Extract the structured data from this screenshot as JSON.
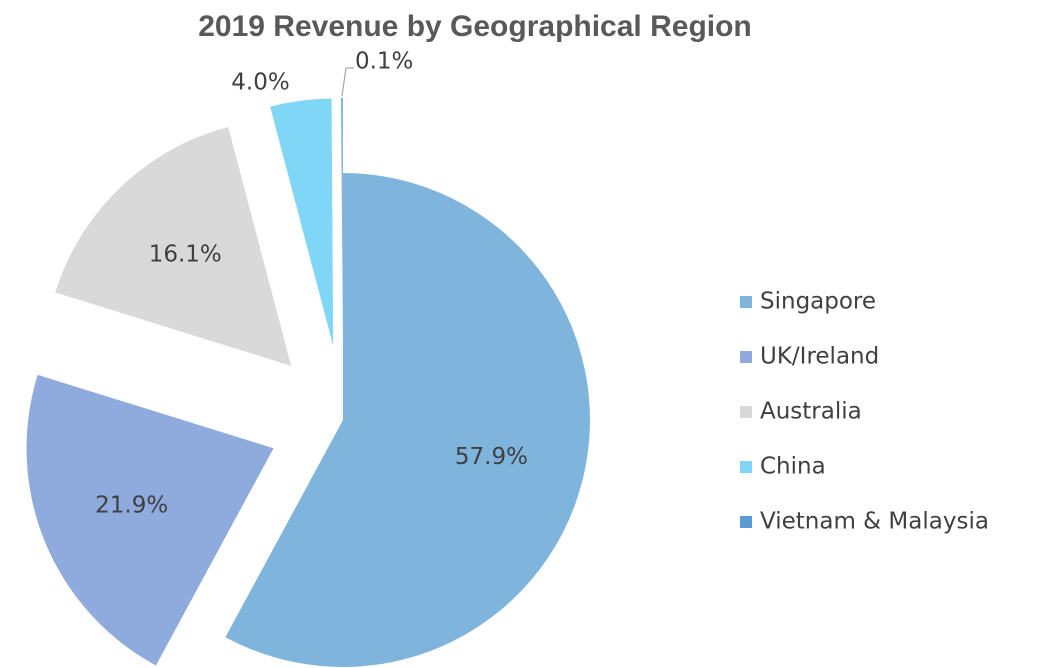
{
  "chart_data": {
    "type": "pie",
    "title": "2019 Revenue by Geographical Region",
    "categories": [
      "Singapore",
      "UK/Ireland",
      "Australia",
      "China",
      "Vietnam & Malaysia"
    ],
    "values": [
      57.9,
      21.9,
      16.1,
      4.0,
      0.1
    ],
    "value_labels": [
      "57.9%",
      "21.9%",
      "16.1%",
      "4.0%",
      "0.1%"
    ],
    "colors": [
      "#7fb5dd",
      "#8faadc",
      "#d9d9d9",
      "#7fd6f7",
      "#5b9bd5"
    ],
    "legend": "right"
  }
}
